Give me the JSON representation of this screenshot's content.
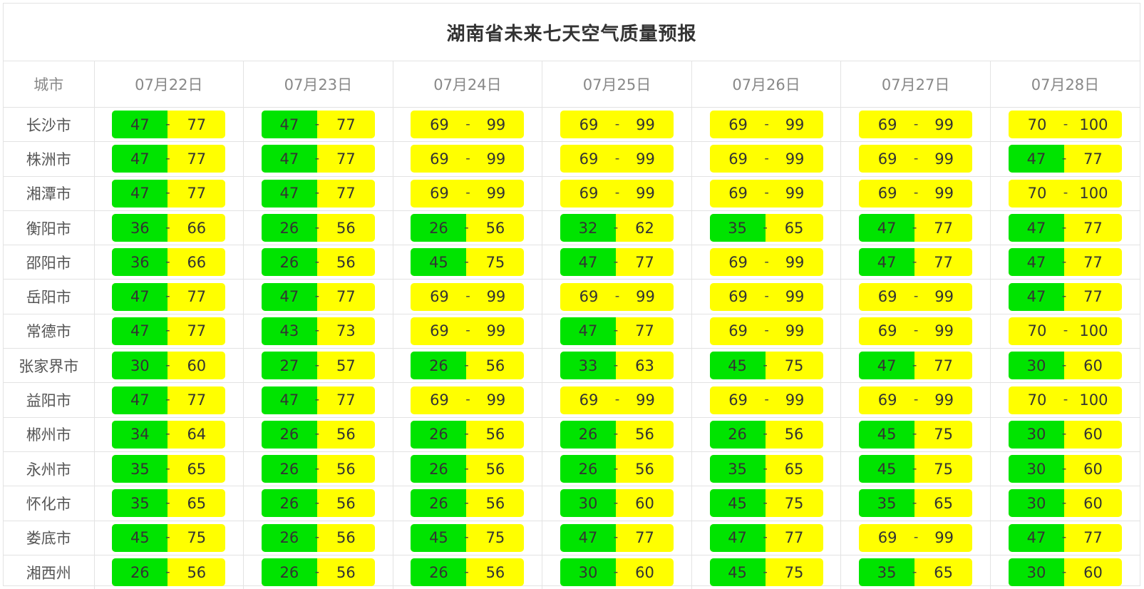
{
  "title": "湖南省未来七天空气质量预报",
  "header": {
    "city_label": "城市",
    "dates": [
      "07月22日",
      "07月23日",
      "07月24日",
      "07月25日",
      "07月26日",
      "07月27日",
      "07月28日"
    ]
  },
  "separator": "-",
  "colors": {
    "good": "#00e400",
    "moderate": "#ffff00"
  },
  "rows": [
    {
      "city": "长沙市",
      "cells": [
        {
          "lo": "47",
          "hi": "77",
          "style": "mixed"
        },
        {
          "lo": "47",
          "hi": "77",
          "style": "mixed"
        },
        {
          "lo": "69",
          "hi": "99",
          "style": "yellow"
        },
        {
          "lo": "69",
          "hi": "99",
          "style": "yellow"
        },
        {
          "lo": "69",
          "hi": "99",
          "style": "yellow"
        },
        {
          "lo": "69",
          "hi": "99",
          "style": "yellow"
        },
        {
          "lo": "70",
          "hi": "100",
          "style": "yellow"
        }
      ]
    },
    {
      "city": "株洲市",
      "cells": [
        {
          "lo": "47",
          "hi": "77",
          "style": "mixed"
        },
        {
          "lo": "47",
          "hi": "77",
          "style": "mixed"
        },
        {
          "lo": "69",
          "hi": "99",
          "style": "yellow"
        },
        {
          "lo": "69",
          "hi": "99",
          "style": "yellow"
        },
        {
          "lo": "69",
          "hi": "99",
          "style": "yellow"
        },
        {
          "lo": "69",
          "hi": "99",
          "style": "yellow"
        },
        {
          "lo": "47",
          "hi": "77",
          "style": "mixed"
        }
      ]
    },
    {
      "city": "湘潭市",
      "cells": [
        {
          "lo": "47",
          "hi": "77",
          "style": "mixed"
        },
        {
          "lo": "47",
          "hi": "77",
          "style": "mixed"
        },
        {
          "lo": "69",
          "hi": "99",
          "style": "yellow"
        },
        {
          "lo": "69",
          "hi": "99",
          "style": "yellow"
        },
        {
          "lo": "69",
          "hi": "99",
          "style": "yellow"
        },
        {
          "lo": "69",
          "hi": "99",
          "style": "yellow"
        },
        {
          "lo": "70",
          "hi": "100",
          "style": "yellow"
        }
      ]
    },
    {
      "city": "衡阳市",
      "cells": [
        {
          "lo": "36",
          "hi": "66",
          "style": "mixed"
        },
        {
          "lo": "26",
          "hi": "56",
          "style": "mixed"
        },
        {
          "lo": "26",
          "hi": "56",
          "style": "mixed"
        },
        {
          "lo": "32",
          "hi": "62",
          "style": "mixed"
        },
        {
          "lo": "35",
          "hi": "65",
          "style": "mixed"
        },
        {
          "lo": "47",
          "hi": "77",
          "style": "mixed"
        },
        {
          "lo": "47",
          "hi": "77",
          "style": "mixed"
        }
      ]
    },
    {
      "city": "邵阳市",
      "cells": [
        {
          "lo": "36",
          "hi": "66",
          "style": "mixed"
        },
        {
          "lo": "26",
          "hi": "56",
          "style": "mixed"
        },
        {
          "lo": "45",
          "hi": "75",
          "style": "mixed"
        },
        {
          "lo": "47",
          "hi": "77",
          "style": "mixed"
        },
        {
          "lo": "69",
          "hi": "99",
          "style": "yellow"
        },
        {
          "lo": "47",
          "hi": "77",
          "style": "mixed"
        },
        {
          "lo": "47",
          "hi": "77",
          "style": "mixed"
        }
      ]
    },
    {
      "city": "岳阳市",
      "cells": [
        {
          "lo": "47",
          "hi": "77",
          "style": "mixed"
        },
        {
          "lo": "47",
          "hi": "77",
          "style": "mixed"
        },
        {
          "lo": "69",
          "hi": "99",
          "style": "yellow"
        },
        {
          "lo": "69",
          "hi": "99",
          "style": "yellow"
        },
        {
          "lo": "69",
          "hi": "99",
          "style": "yellow"
        },
        {
          "lo": "69",
          "hi": "99",
          "style": "yellow"
        },
        {
          "lo": "47",
          "hi": "77",
          "style": "mixed"
        }
      ]
    },
    {
      "city": "常德市",
      "cells": [
        {
          "lo": "47",
          "hi": "77",
          "style": "mixed"
        },
        {
          "lo": "43",
          "hi": "73",
          "style": "mixed"
        },
        {
          "lo": "69",
          "hi": "99",
          "style": "yellow"
        },
        {
          "lo": "47",
          "hi": "77",
          "style": "mixed"
        },
        {
          "lo": "69",
          "hi": "99",
          "style": "yellow"
        },
        {
          "lo": "69",
          "hi": "99",
          "style": "yellow"
        },
        {
          "lo": "70",
          "hi": "100",
          "style": "yellow"
        }
      ]
    },
    {
      "city": "张家界市",
      "cells": [
        {
          "lo": "30",
          "hi": "60",
          "style": "mixed"
        },
        {
          "lo": "27",
          "hi": "57",
          "style": "mixed"
        },
        {
          "lo": "26",
          "hi": "56",
          "style": "mixed"
        },
        {
          "lo": "33",
          "hi": "63",
          "style": "mixed"
        },
        {
          "lo": "45",
          "hi": "75",
          "style": "mixed"
        },
        {
          "lo": "47",
          "hi": "77",
          "style": "mixed"
        },
        {
          "lo": "30",
          "hi": "60",
          "style": "mixed"
        }
      ]
    },
    {
      "city": "益阳市",
      "cells": [
        {
          "lo": "47",
          "hi": "77",
          "style": "mixed"
        },
        {
          "lo": "47",
          "hi": "77",
          "style": "mixed"
        },
        {
          "lo": "69",
          "hi": "99",
          "style": "yellow"
        },
        {
          "lo": "69",
          "hi": "99",
          "style": "yellow"
        },
        {
          "lo": "69",
          "hi": "99",
          "style": "yellow"
        },
        {
          "lo": "69",
          "hi": "99",
          "style": "yellow"
        },
        {
          "lo": "70",
          "hi": "100",
          "style": "yellow"
        }
      ]
    },
    {
      "city": "郴州市",
      "cells": [
        {
          "lo": "34",
          "hi": "64",
          "style": "mixed"
        },
        {
          "lo": "26",
          "hi": "56",
          "style": "mixed"
        },
        {
          "lo": "26",
          "hi": "56",
          "style": "mixed"
        },
        {
          "lo": "26",
          "hi": "56",
          "style": "mixed"
        },
        {
          "lo": "26",
          "hi": "56",
          "style": "mixed"
        },
        {
          "lo": "45",
          "hi": "75",
          "style": "mixed"
        },
        {
          "lo": "30",
          "hi": "60",
          "style": "mixed"
        }
      ]
    },
    {
      "city": "永州市",
      "cells": [
        {
          "lo": "35",
          "hi": "65",
          "style": "mixed"
        },
        {
          "lo": "26",
          "hi": "56",
          "style": "mixed"
        },
        {
          "lo": "26",
          "hi": "56",
          "style": "mixed"
        },
        {
          "lo": "26",
          "hi": "56",
          "style": "mixed"
        },
        {
          "lo": "35",
          "hi": "65",
          "style": "mixed"
        },
        {
          "lo": "45",
          "hi": "75",
          "style": "mixed"
        },
        {
          "lo": "30",
          "hi": "60",
          "style": "mixed"
        }
      ]
    },
    {
      "city": "怀化市",
      "cells": [
        {
          "lo": "35",
          "hi": "65",
          "style": "mixed"
        },
        {
          "lo": "26",
          "hi": "56",
          "style": "mixed"
        },
        {
          "lo": "26",
          "hi": "56",
          "style": "mixed"
        },
        {
          "lo": "30",
          "hi": "60",
          "style": "mixed"
        },
        {
          "lo": "45",
          "hi": "75",
          "style": "mixed"
        },
        {
          "lo": "35",
          "hi": "65",
          "style": "mixed"
        },
        {
          "lo": "30",
          "hi": "60",
          "style": "mixed"
        }
      ]
    },
    {
      "city": "娄底市",
      "cells": [
        {
          "lo": "45",
          "hi": "75",
          "style": "mixed"
        },
        {
          "lo": "26",
          "hi": "56",
          "style": "mixed"
        },
        {
          "lo": "45",
          "hi": "75",
          "style": "mixed"
        },
        {
          "lo": "47",
          "hi": "77",
          "style": "mixed"
        },
        {
          "lo": "47",
          "hi": "77",
          "style": "mixed"
        },
        {
          "lo": "69",
          "hi": "99",
          "style": "yellow"
        },
        {
          "lo": "47",
          "hi": "77",
          "style": "mixed"
        }
      ]
    },
    {
      "city": "湘西州",
      "cells": [
        {
          "lo": "26",
          "hi": "56",
          "style": "mixed"
        },
        {
          "lo": "26",
          "hi": "56",
          "style": "mixed"
        },
        {
          "lo": "26",
          "hi": "56",
          "style": "mixed"
        },
        {
          "lo": "30",
          "hi": "60",
          "style": "mixed"
        },
        {
          "lo": "45",
          "hi": "75",
          "style": "mixed"
        },
        {
          "lo": "35",
          "hi": "65",
          "style": "mixed"
        },
        {
          "lo": "30",
          "hi": "60",
          "style": "mixed"
        }
      ]
    }
  ]
}
